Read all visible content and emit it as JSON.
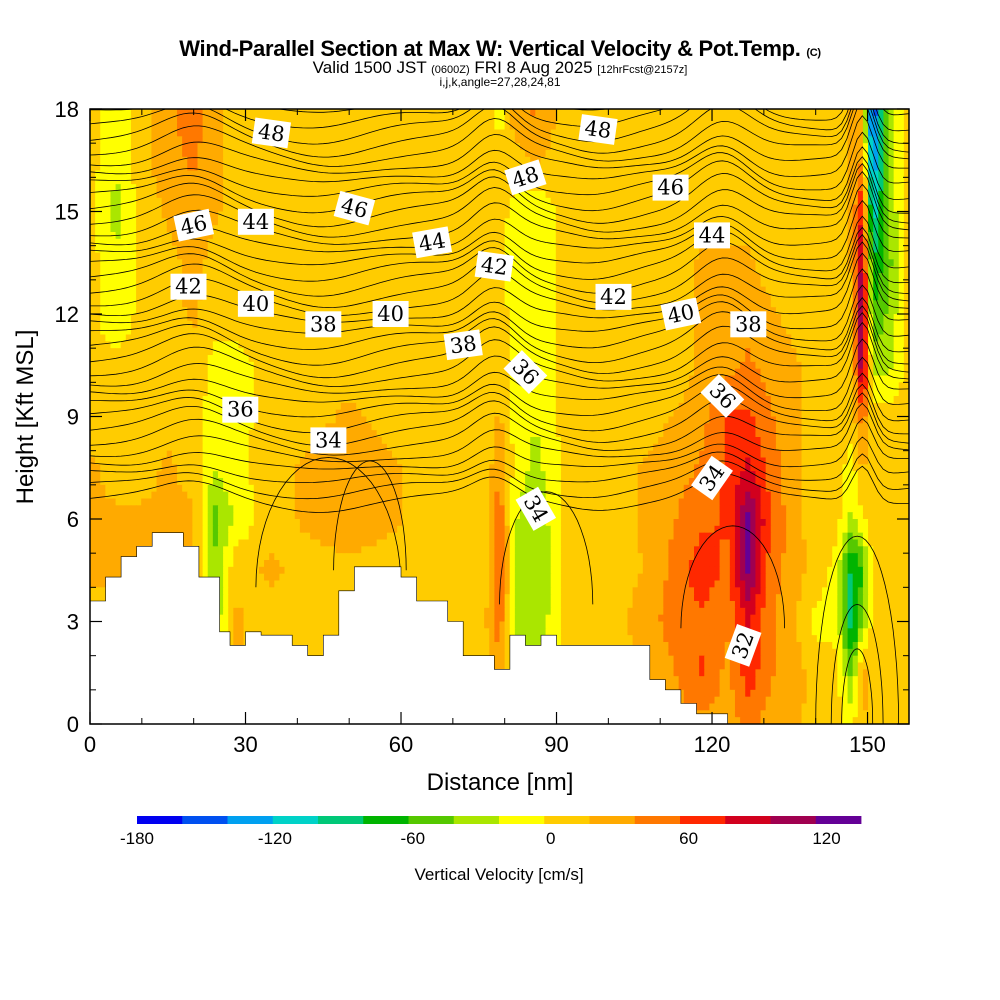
{
  "titles": {
    "main": "Wind-Parallel Section at Max W: Vertical Velocity & Pot.Temp.",
    "copyright": "(C)",
    "valid_prefix": "Valid 1500 JST",
    "valid_utc": "(0600Z)",
    "valid_date": "FRI 8 Aug 2025",
    "forecast": "[12hrFcst@2157z]",
    "indices": "i,j,k,angle=27,28,24,81"
  },
  "chart_data": {
    "type": "heatmap",
    "title": "Wind-Parallel Section at Max W: Vertical Velocity & Pot.Temp.",
    "xlabel": "Distance [nm]",
    "ylabel": "Height [Kft MSL]",
    "xlim": [
      0,
      158
    ],
    "ylim": [
      0,
      18
    ],
    "xticks": [
      0,
      30,
      60,
      90,
      120,
      150
    ],
    "yticks": [
      0,
      3,
      6,
      9,
      12,
      15,
      18
    ],
    "colorbar": {
      "label": "Vertical Velocity [cm/s]",
      "ticks": [
        -180,
        -120,
        -60,
        0,
        60,
        120
      ],
      "bounds": [
        -180,
        135
      ],
      "colors": [
        "#0000f0",
        "#0050f0",
        "#00a0f0",
        "#00d2c8",
        "#00c878",
        "#00b400",
        "#55c800",
        "#aae600",
        "#ffff00",
        "#ffcc00",
        "#ffaa00",
        "#ff7800",
        "#ff2800",
        "#d2001e",
        "#a00050",
        "#640096"
      ]
    },
    "vertical_velocity_field": {
      "x": [
        0,
        5,
        10,
        15,
        20,
        24,
        28,
        35,
        42,
        50,
        58,
        65,
        72,
        77,
        79,
        82,
        86,
        92,
        100,
        108,
        114,
        118,
        123,
        127,
        131,
        136,
        140,
        144,
        147,
        149,
        151,
        154,
        158
      ],
      "y": [
        0,
        1.5,
        3,
        4.5,
        6,
        7.5,
        9,
        10.5,
        12,
        13.5,
        15,
        16.5,
        18
      ],
      "w": [
        [
          5,
          5,
          5,
          5,
          5,
          -10,
          10,
          5,
          5,
          5,
          5,
          5,
          5,
          10,
          5,
          5,
          10,
          5,
          5,
          10,
          30,
          30,
          30,
          40,
          30,
          20,
          10,
          5,
          -10,
          20,
          5,
          5,
          5
        ],
        [
          5,
          5,
          5,
          5,
          5,
          -10,
          20,
          5,
          5,
          5,
          5,
          5,
          5,
          10,
          30,
          -30,
          -20,
          10,
          5,
          20,
          40,
          60,
          30,
          70,
          40,
          25,
          10,
          5,
          -50,
          30,
          5,
          5,
          5
        ],
        [
          10,
          10,
          10,
          10,
          10,
          -40,
          20,
          10,
          10,
          10,
          10,
          10,
          5,
          20,
          50,
          -30,
          -40,
          5,
          5,
          30,
          50,
          50,
          40,
          80,
          40,
          20,
          -10,
          -10,
          -100,
          -40,
          5,
          5,
          5
        ],
        [
          20,
          20,
          20,
          20,
          20,
          -40,
          10,
          20,
          10,
          10,
          10,
          10,
          10,
          10,
          70,
          -25,
          -45,
          5,
          5,
          20,
          50,
          70,
          50,
          120,
          50,
          25,
          10,
          -10,
          -90,
          -60,
          5,
          5,
          5
        ],
        [
          20,
          20,
          20,
          20,
          20,
          -50,
          -20,
          10,
          20,
          30,
          20,
          10,
          10,
          10,
          50,
          -20,
          -40,
          5,
          10,
          20,
          40,
          50,
          60,
          120,
          60,
          20,
          10,
          5,
          -30,
          -5,
          5,
          5,
          5
        ],
        [
          20,
          10,
          10,
          20,
          10,
          -20,
          -10,
          10,
          20,
          30,
          20,
          10,
          10,
          10,
          40,
          -10,
          -30,
          5,
          10,
          20,
          30,
          40,
          60,
          80,
          50,
          20,
          10,
          5,
          -10,
          20,
          5,
          5,
          5
        ],
        [
          10,
          10,
          10,
          10,
          10,
          -15,
          -10,
          5,
          10,
          20,
          10,
          10,
          5,
          5,
          20,
          -10,
          -20,
          5,
          10,
          10,
          20,
          30,
          60,
          60,
          40,
          20,
          10,
          5,
          5,
          50,
          5,
          5,
          5
        ],
        [
          5,
          5,
          5,
          5,
          10,
          -10,
          -10,
          5,
          10,
          10,
          10,
          5,
          5,
          10,
          10,
          -15,
          -15,
          5,
          5,
          10,
          10,
          20,
          30,
          40,
          30,
          20,
          10,
          5,
          5,
          120,
          -30,
          -30,
          5
        ],
        [
          5,
          -20,
          5,
          10,
          20,
          5,
          5,
          10,
          10,
          5,
          5,
          5,
          5,
          10,
          10,
          -15,
          -20,
          5,
          5,
          10,
          10,
          20,
          20,
          30,
          20,
          10,
          5,
          5,
          10,
          130,
          -60,
          -40,
          5
        ],
        [
          5,
          -20,
          5,
          10,
          25,
          10,
          5,
          5,
          5,
          5,
          5,
          5,
          5,
          5,
          5,
          -15,
          -20,
          5,
          5,
          10,
          10,
          20,
          20,
          20,
          10,
          10,
          5,
          10,
          20,
          110,
          -80,
          -50,
          5
        ],
        [
          5,
          -30,
          5,
          20,
          30,
          20,
          10,
          5,
          5,
          5,
          5,
          5,
          5,
          5,
          5,
          -10,
          -20,
          5,
          5,
          5,
          10,
          10,
          10,
          10,
          10,
          5,
          5,
          10,
          20,
          80,
          -120,
          -40,
          5
        ],
        [
          5,
          -20,
          10,
          30,
          40,
          20,
          10,
          5,
          5,
          5,
          5,
          5,
          5,
          5,
          10,
          10,
          20,
          5,
          5,
          5,
          5,
          10,
          10,
          10,
          10,
          5,
          5,
          10,
          20,
          40,
          -150,
          -30,
          5
        ],
        [
          5,
          -20,
          10,
          30,
          50,
          20,
          10,
          5,
          5,
          5,
          5,
          5,
          5,
          10,
          -20,
          30,
          40,
          5,
          5,
          5,
          5,
          10,
          10,
          5,
          5,
          5,
          5,
          10,
          20,
          30,
          -170,
          -30,
          5
        ]
      ]
    },
    "terrain": {
      "x": [
        0,
        3,
        3,
        6,
        6,
        9,
        9,
        12,
        12,
        18,
        18,
        21,
        21,
        25,
        25,
        27,
        27,
        30,
        30,
        33,
        33,
        39,
        39,
        42,
        42,
        45,
        45,
        48,
        48,
        51,
        51,
        54,
        54,
        60,
        60,
        63,
        63,
        69,
        69,
        72,
        72,
        78,
        78,
        81,
        81,
        84,
        84,
        87,
        87,
        90,
        90,
        96,
        96,
        99,
        99,
        108,
        108,
        111,
        111,
        114,
        114,
        117,
        117,
        120,
        120,
        123,
        123,
        158
      ],
      "height": [
        3.6,
        3.6,
        4.3,
        4.3,
        4.9,
        4.9,
        5.2,
        5.2,
        5.6,
        5.6,
        5.2,
        5.2,
        4.3,
        4.3,
        2.7,
        2.7,
        2.3,
        2.3,
        2.7,
        2.7,
        2.6,
        2.6,
        2.3,
        2.3,
        2.0,
        2.0,
        2.6,
        2.6,
        3.9,
        3.9,
        4.6,
        4.6,
        4.6,
        4.6,
        4.3,
        4.3,
        3.6,
        3.6,
        3.0,
        3.0,
        2.0,
        2.0,
        1.6,
        1.6,
        2.6,
        2.6,
        2.3,
        2.3,
        2.6,
        2.6,
        2.3,
        2.3,
        2.3,
        2.3,
        2.3,
        2.3,
        1.3,
        1.3,
        1.0,
        1.0,
        0.6,
        0.6,
        0.3,
        0.3,
        0.3,
        0.3,
        0.0,
        0.0
      ]
    },
    "potential_temperature_contour_labels": [
      {
        "text": "48",
        "x": 35,
        "y": 17.3,
        "angle": 8
      },
      {
        "text": "48",
        "x": 84,
        "y": 16.0,
        "angle": -18
      },
      {
        "text": "48",
        "x": 98,
        "y": 17.4,
        "angle": 8
      },
      {
        "text": "46",
        "x": 20,
        "y": 14.6,
        "angle": -12
      },
      {
        "text": "46",
        "x": 51,
        "y": 15.1,
        "angle": 15
      },
      {
        "text": "46",
        "x": 112,
        "y": 15.7,
        "angle": 0
      },
      {
        "text": "44",
        "x": 32,
        "y": 14.7,
        "angle": 0
      },
      {
        "text": "44",
        "x": 66,
        "y": 14.1,
        "angle": -10
      },
      {
        "text": "44",
        "x": 120,
        "y": 14.3,
        "angle": 0
      },
      {
        "text": "42",
        "x": 19,
        "y": 12.8,
        "angle": 0
      },
      {
        "text": "42",
        "x": 78,
        "y": 13.4,
        "angle": 8
      },
      {
        "text": "42",
        "x": 101,
        "y": 12.5,
        "angle": 0
      },
      {
        "text": "40",
        "x": 32,
        "y": 12.3,
        "angle": 0
      },
      {
        "text": "40",
        "x": 58,
        "y": 12.0,
        "angle": 0
      },
      {
        "text": "40",
        "x": 114,
        "y": 12.0,
        "angle": -12
      },
      {
        "text": "38",
        "x": 45,
        "y": 11.7,
        "angle": 0
      },
      {
        "text": "38",
        "x": 72,
        "y": 11.1,
        "angle": -8
      },
      {
        "text": "38",
        "x": 127,
        "y": 11.7,
        "angle": 0
      },
      {
        "text": "36",
        "x": 29,
        "y": 9.2,
        "angle": 0
      },
      {
        "text": "36",
        "x": 84,
        "y": 10.3,
        "angle": 45
      },
      {
        "text": "36",
        "x": 122,
        "y": 9.6,
        "angle": 45
      },
      {
        "text": "34",
        "x": 46,
        "y": 8.3,
        "angle": 0
      },
      {
        "text": "34",
        "x": 86,
        "y": 6.3,
        "angle": 60
      },
      {
        "text": "34",
        "x": 120,
        "y": 7.2,
        "angle": -55
      },
      {
        "text": "32",
        "x": 126,
        "y": 2.3,
        "angle": -70
      }
    ]
  }
}
